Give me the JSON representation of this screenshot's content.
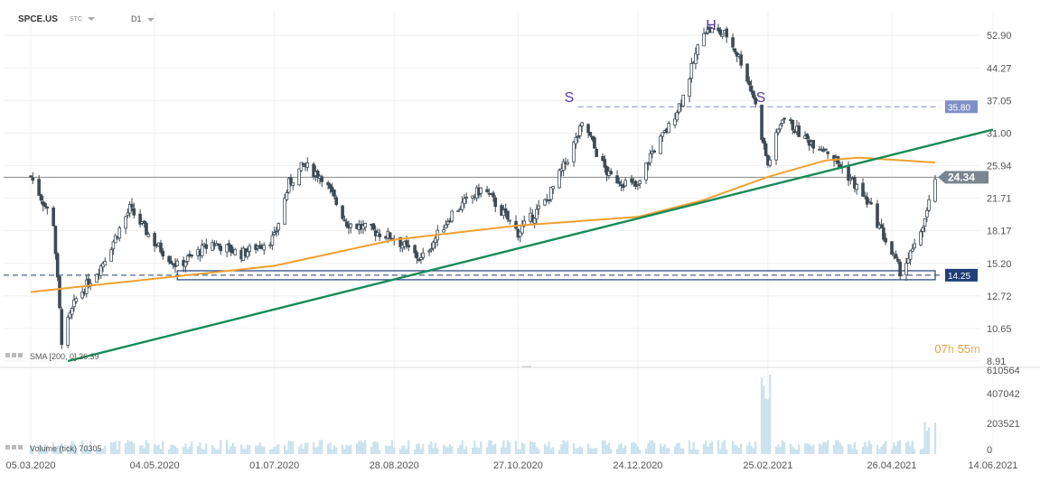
{
  "header": {
    "symbol": "SPCE.US",
    "type": "STC",
    "timeframe": "D1"
  },
  "indicators": {
    "sma_label": "SMA [200, 0]  26.39",
    "volume_label": "Volume  (tick)  70305"
  },
  "timer": {
    "hours": "07",
    "h": "h",
    "minutes": "55",
    "m": "m"
  },
  "price_tags": {
    "neckline": "35.80",
    "support": "14.25",
    "current": "24.34"
  },
  "annotations": [
    "S",
    "H",
    "S"
  ],
  "colors": {
    "candle": "#3d4a55",
    "sma": "#f0a030",
    "trendline": "#1a8a5a",
    "support_box": "#1f3f7a",
    "neckline": "#7f8fc7",
    "current_tag": "#7a8591",
    "annotation": "#5a3aa0",
    "volume": "#c9e2ee"
  },
  "chart_data": {
    "type": "candlestick",
    "ylim": [
      8.91,
      60.5
    ],
    "yscale": "log",
    "y_ticks": [
      "52.90",
      "44.27",
      "37.05",
      "31.00",
      "25.94",
      "21.71",
      "18.17",
      "15.20",
      "12.72",
      "10.65",
      "8.91"
    ],
    "x_ticks": [
      "05.03.2020",
      "04.05.2020",
      "01.07.2020",
      "28.08.2020",
      "27.10.2020",
      "24.12.2020",
      "25.02.2021",
      "26.04.2021",
      "14.06.2021"
    ],
    "volume_ticks": [
      "610564",
      "407042",
      "203521",
      "0"
    ],
    "levels": {
      "neckline": 35.8,
      "support": 14.25,
      "current": 24.34
    },
    "sma200_last": 26.39,
    "anchors": [
      [
        "05.03.2020",
        24.5
      ],
      [
        "16.03.2020",
        19.0
      ],
      [
        "20.03.2020",
        10.0
      ],
      [
        "27.03.2020",
        12.5
      ],
      [
        "08.04.2020",
        15.0
      ],
      [
        "22.04.2020",
        20.5
      ],
      [
        "04.05.2020",
        17.0
      ],
      [
        "15.05.2020",
        15.0
      ],
      [
        "01.06.2020",
        17.0
      ],
      [
        "15.06.2020",
        16.0
      ],
      [
        "01.07.2020",
        17.5
      ],
      [
        "08.07.2020",
        23.5
      ],
      [
        "15.07.2020",
        26.0
      ],
      [
        "24.07.2020",
        24.5
      ],
      [
        "05.08.2020",
        19.0
      ],
      [
        "28.08.2020",
        17.5
      ],
      [
        "10.09.2020",
        15.5
      ],
      [
        "25.09.2020",
        20.0
      ],
      [
        "10.10.2020",
        23.0
      ],
      [
        "27.10.2020",
        18.0
      ],
      [
        "10.11.2020",
        21.5
      ],
      [
        "20.11.2020",
        27.0
      ],
      [
        "28.11.2020",
        33.0
      ],
      [
        "03.12.2020",
        28.5
      ],
      [
        "10.12.2020",
        24.5
      ],
      [
        "24.12.2020",
        23.0
      ],
      [
        "30.12.2020",
        27.5
      ],
      [
        "08.01.2021",
        32.0
      ],
      [
        "15.01.2021",
        38.0
      ],
      [
        "25.01.2021",
        55.0
      ],
      [
        "05.02.2021",
        53.0
      ],
      [
        "12.02.2021",
        46.0
      ],
      [
        "18.02.2021",
        38.0
      ],
      [
        "25.02.2021",
        26.0
      ],
      [
        "04.03.2021",
        34.0
      ],
      [
        "15.03.2021",
        30.0
      ],
      [
        "25.03.2021",
        28.5
      ],
      [
        "05.04.2021",
        24.5
      ],
      [
        "15.04.2021",
        21.0
      ],
      [
        "26.04.2021",
        16.0
      ],
      [
        "30.04.2021",
        14.6
      ],
      [
        "07.05.2021",
        16.5
      ],
      [
        "13.05.2021",
        20.0
      ],
      [
        "17.05.2021",
        24.34
      ]
    ],
    "sma200": [
      [
        "05.03.2020",
        13.0
      ],
      [
        "01.07.2020",
        15.0
      ],
      [
        "28.08.2020",
        17.3
      ],
      [
        "27.10.2020",
        18.7
      ],
      [
        "24.12.2020",
        19.6
      ],
      [
        "25.01.2021",
        21.5
      ],
      [
        "25.02.2021",
        24.4
      ],
      [
        "25.03.2021",
        26.7
      ],
      [
        "10.04.2021",
        27.1
      ],
      [
        "17.05.2021",
        26.39
      ]
    ],
    "trendline": [
      [
        "23.03.2020",
        8.91
      ],
      [
        "14.06.2021",
        31.6
      ]
    ],
    "support_box": {
      "from": "15.05.2020",
      "to": "17.05.2021",
      "low": 13.9,
      "high": 14.6
    },
    "neckline_from": "25.11.2020"
  }
}
